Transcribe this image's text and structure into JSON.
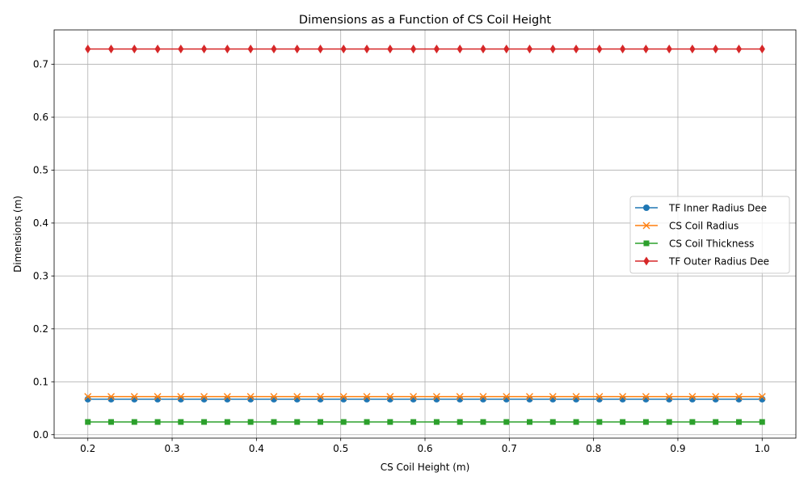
{
  "chart_data": {
    "type": "line",
    "title": "Dimensions as a Function of CS Coil Height",
    "xlabel": "CS Coil Height (m)",
    "ylabel": "Dimensions (m)",
    "xlim": [
      0.16,
      1.04
    ],
    "ylim": [
      -0.0065,
      0.765
    ],
    "xticks": [
      0.2,
      0.3,
      0.4,
      0.5,
      0.6,
      0.7,
      0.8,
      0.9,
      1.0
    ],
    "xtick_labels": [
      "0.2",
      "0.3",
      "0.4",
      "0.5",
      "0.6",
      "0.7",
      "0.8",
      "0.9",
      "1.0"
    ],
    "yticks": [
      0.0,
      0.1,
      0.2,
      0.3,
      0.4,
      0.5,
      0.6,
      0.7
    ],
    "ytick_labels": [
      "0.0",
      "0.1",
      "0.2",
      "0.3",
      "0.4",
      "0.5",
      "0.6",
      "0.7"
    ],
    "grid": true,
    "legend_position": "center-right",
    "x": [
      0.2,
      0.2276,
      0.2552,
      0.2828,
      0.3103,
      0.3379,
      0.3655,
      0.3931,
      0.4207,
      0.4483,
      0.4759,
      0.5034,
      0.531,
      0.5586,
      0.5862,
      0.6138,
      0.6414,
      0.669,
      0.6966,
      0.7241,
      0.7517,
      0.7793,
      0.8069,
      0.8345,
      0.8621,
      0.8897,
      0.9172,
      0.9448,
      0.9724,
      1.0
    ],
    "series": [
      {
        "name": "TF Inner Radius Dee",
        "constant": 0.067,
        "color": "#1f77b4",
        "marker": "circle"
      },
      {
        "name": "CS Coil Radius",
        "constant": 0.072,
        "color": "#ff7f0e",
        "marker": "x"
      },
      {
        "name": "CS Coil Thickness",
        "constant": 0.024,
        "color": "#2ca02c",
        "marker": "square"
      },
      {
        "name": "TF Outer Radius Dee",
        "constant": 0.729,
        "color": "#d62728",
        "marker": "diamond"
      }
    ]
  }
}
